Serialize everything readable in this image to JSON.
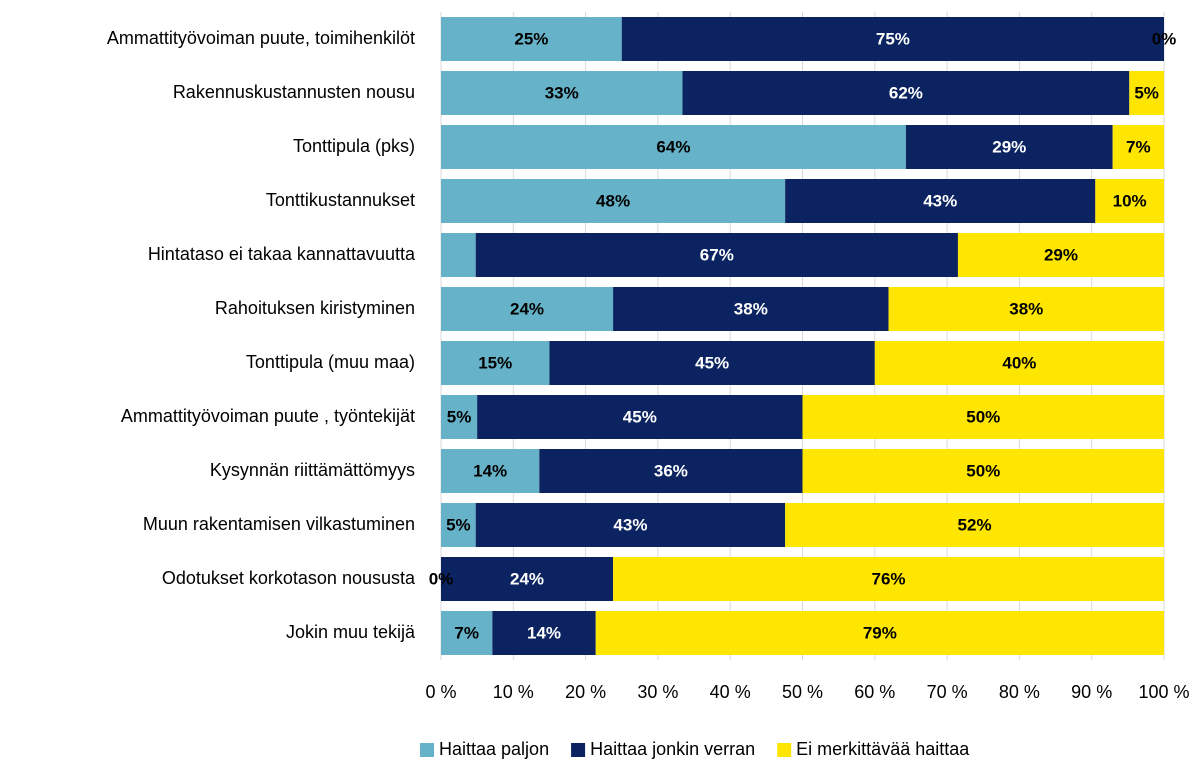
{
  "chart_data": {
    "type": "stacked_bar_horizontal",
    "categories": [
      "Ammattityövoiman puute, toimihenkilöt",
      "Rakennuskustannusten nousu",
      "Tonttipula (pks)",
      "Tonttikustannukset",
      "Hintataso ei takaa kannattavuutta",
      "Rahoituksen kiristyminen",
      "Tonttipula (muu maa)",
      "Ammattityövoiman puute ,  työntekijät",
      "Kysynnän riittämättömyys",
      "Muun rakentamisen vilkastuminen",
      "Odotukset korkotason noususta",
      "Jokin muu tekijä"
    ],
    "series": [
      {
        "name": "Haittaa paljon",
        "color": "#66b3c9",
        "label_color": "#000000",
        "values": [
          25,
          33.4,
          64.3,
          47.6,
          4.8,
          23.8,
          15,
          5,
          13.6,
          4.8,
          0,
          7.1
        ],
        "value_labels": [
          "25%",
          "33%",
          "64%",
          "48%",
          null,
          "24%",
          "15%",
          "5%",
          "14%",
          "5%",
          "0%",
          "7%"
        ]
      },
      {
        "name": "Haittaa jonkin verran",
        "color": "#0b2461",
        "label_color": "#ffffff",
        "values": [
          75,
          61.8,
          28.6,
          42.9,
          66.7,
          38.1,
          45,
          45,
          36.4,
          42.8,
          23.8,
          14.3
        ],
        "value_labels": [
          "75%",
          "62%",
          "29%",
          "43%",
          "67%",
          "38%",
          "45%",
          "45%",
          "36%",
          "43%",
          "24%",
          "14%"
        ]
      },
      {
        "name": "Ei merkittävää haittaa",
        "color": "#ffe600",
        "label_color": "#000000",
        "values": [
          0,
          4.8,
          7.1,
          9.5,
          28.5,
          38.1,
          40,
          50,
          50,
          52.4,
          76.2,
          78.6
        ],
        "value_labels": [
          "0%",
          "5%",
          "7%",
          "10%",
          "29%",
          "38%",
          "40%",
          "50%",
          "50%",
          "52%",
          "76%",
          "79%"
        ]
      }
    ],
    "xlim": [
      0,
      100
    ],
    "xticks": [
      {
        "value": 0,
        "label": "0 %"
      },
      {
        "value": 10,
        "label": "10 %"
      },
      {
        "value": 20,
        "label": "20 %"
      },
      {
        "value": 30,
        "label": "30 %"
      },
      {
        "value": 40,
        "label": "40 %"
      },
      {
        "value": 50,
        "label": "50 %"
      },
      {
        "value": 60,
        "label": "60 %"
      },
      {
        "value": 70,
        "label": "70 %"
      },
      {
        "value": 80,
        "label": "80 %"
      },
      {
        "value": 90,
        "label": "90 %"
      },
      {
        "value": 100,
        "label": "100 %"
      }
    ],
    "grid": true,
    "legend": "bottom"
  }
}
